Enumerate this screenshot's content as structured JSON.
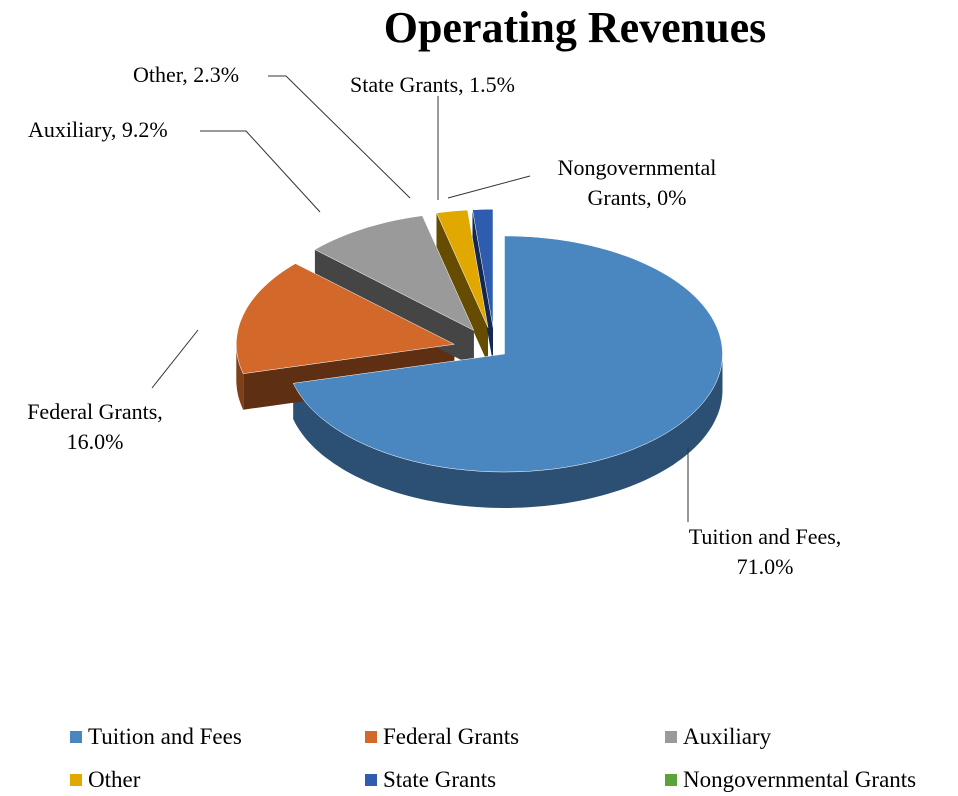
{
  "chart_data": {
    "type": "pie",
    "title": "Operating Revenues",
    "categories": [
      "Tuition and Fees",
      "Federal Grants",
      "Auxiliary",
      "Other",
      "State Grants",
      "Nongovernmental Grants"
    ],
    "values": [
      71.0,
      16.0,
      9.2,
      2.3,
      1.5,
      0
    ],
    "value_labels": [
      "Tuition and Fees, 71.0%",
      "Federal Grants, 16.0%",
      "Auxiliary, 9.2%",
      "Other, 2.3%",
      "State Grants, 1.5%",
      "Nongovernmental Grants, 0%"
    ],
    "colors": [
      "#4a86c0",
      "#d2692a",
      "#9a9a9a",
      "#e0a800",
      "#2f5cae",
      "#5aa23a"
    ],
    "legend": "bottom"
  }
}
